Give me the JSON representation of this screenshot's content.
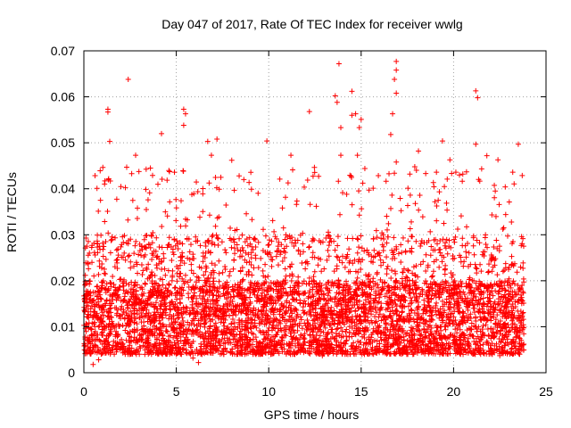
{
  "chart_data": {
    "type": "scatter",
    "title": "Day 047 of 2017, Rate Of TEC Index for receiver wwlg",
    "xlabel": "GPS time / hours",
    "ylabel": "ROTI / TECUs",
    "xlim": [
      0,
      25
    ],
    "ylim": [
      0,
      0.07
    ],
    "x_ticks": [
      0,
      5,
      10,
      15,
      20,
      25
    ],
    "x_tick_labels": [
      "0",
      "5",
      "10",
      "15",
      "20",
      "25"
    ],
    "y_ticks": [
      0,
      0.01,
      0.02,
      0.03,
      0.04,
      0.05,
      0.06,
      0.07
    ],
    "y_tick_labels": [
      "0",
      "0.01",
      "0.02",
      "0.03",
      "0.04",
      "0.05",
      "0.06",
      "0.07"
    ],
    "grid": true,
    "marker": "+",
    "color": "#ff0000",
    "series": [
      {
        "name": "ROTI",
        "note": "Dense cloud of samples from ~0 to ~23.8 h; most values 0.003-0.02 TECU/s with frequent spikes to 0.03-0.05",
        "notable_points": [
          [
            2.4,
            0.0638
          ],
          [
            13.8,
            0.0672
          ],
          [
            16.9,
            0.0677
          ],
          [
            16.9,
            0.0658
          ],
          [
            16.8,
            0.0638
          ],
          [
            16.9,
            0.0608
          ],
          [
            21.2,
            0.0613
          ],
          [
            21.3,
            0.0598
          ],
          [
            14.5,
            0.0612
          ],
          [
            13.6,
            0.0602
          ],
          [
            13.7,
            0.0588
          ],
          [
            12.2,
            0.0568
          ],
          [
            1.3,
            0.0573
          ],
          [
            1.3,
            0.0567
          ],
          [
            5.4,
            0.0573
          ],
          [
            5.5,
            0.0563
          ],
          [
            5.4,
            0.0538
          ],
          [
            14.5,
            0.056
          ],
          [
            14.7,
            0.0563
          ],
          [
            15.0,
            0.0551
          ],
          [
            16.7,
            0.0563
          ],
          [
            16.6,
            0.0518
          ],
          [
            13.9,
            0.0533
          ],
          [
            14.9,
            0.0533
          ],
          [
            4.2,
            0.052
          ],
          [
            9.9,
            0.0504
          ],
          [
            19.4,
            0.0504
          ],
          [
            23.5,
            0.0497
          ],
          [
            21.2,
            0.0497
          ],
          [
            7.2,
            0.0508
          ],
          [
            6.7,
            0.0503
          ],
          [
            1.4,
            0.0503
          ],
          [
            2.8,
            0.0473
          ],
          [
            8.0,
            0.0462
          ],
          [
            11.2,
            0.0473
          ],
          [
            18.1,
            0.0482
          ],
          [
            21.8,
            0.0472
          ],
          [
            3.6,
            0.0445
          ],
          [
            6.9,
            0.0473
          ],
          [
            13.9,
            0.0473
          ],
          [
            14.8,
            0.0473
          ],
          [
            16.9,
            0.0458
          ],
          [
            19.8,
            0.0463
          ],
          [
            22.4,
            0.0463
          ],
          [
            0.3,
            0.026
          ],
          [
            0.9,
            0.0375
          ],
          [
            4.9,
            0.0436
          ],
          [
            8.4,
            0.0428
          ],
          [
            10.6,
            0.0421
          ],
          [
            12.7,
            0.0427
          ],
          [
            15.2,
            0.0444
          ],
          [
            17.9,
            0.0448
          ],
          [
            20.5,
            0.0432
          ],
          [
            23.2,
            0.0436
          ],
          [
            0.5,
            0.0018
          ],
          [
            0.8,
            0.0028
          ],
          [
            5.9,
            0.0032
          ],
          [
            6.2,
            0.0022
          ],
          [
            12.9,
            0.0037
          ],
          [
            16.6,
            0.0042
          ],
          [
            22.5,
            0.0037
          ],
          [
            23.8,
            0.0062
          ]
        ]
      }
    ],
    "band": {
      "x_range": [
        0,
        23.8
      ],
      "base_min": 0.004,
      "base_max": 0.02,
      "spike_max": 0.045,
      "count": 5000
    }
  }
}
